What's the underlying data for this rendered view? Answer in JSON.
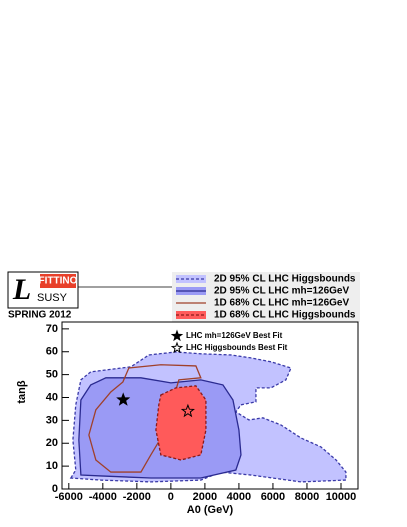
{
  "chart_data": {
    "type": "contour",
    "logo": {
      "letter": "L",
      "top": "FITTINO",
      "bottom": "SUSY",
      "caption": "SPRING 2012"
    },
    "xlabel": "A0 (GeV)",
    "ylabel": "tanβ",
    "xlim": [
      -6400,
      11000
    ],
    "ylim": [
      0,
      73
    ],
    "xticks": [
      -6000,
      -4000,
      -2000,
      0,
      2000,
      4000,
      6000,
      8000,
      10000
    ],
    "yticks": [
      0,
      10,
      20,
      30,
      40,
      50,
      60,
      70
    ],
    "series": [
      {
        "name": "2D 95% CL LHC Higgsbounds",
        "fill": "#c2c2ff",
        "color": "#3a3aa8",
        "line": "dashed",
        "x": [
          -5880,
          -5590,
          -5760,
          -5590,
          -5290,
          -4710,
          -2350,
          -1290,
          290,
          1760,
          3530,
          4710,
          5880,
          7060,
          6760,
          5880,
          5000,
          5000,
          4120,
          3820,
          4590,
          5410,
          6470,
          7650,
          8820,
          9710,
          10290,
          10290,
          7650,
          4710,
          2940,
          1760,
          -1180,
          -4120
        ],
        "y": [
          4.8,
          8.3,
          21.4,
          36.8,
          47.7,
          51.2,
          53.4,
          58.6,
          59.9,
          59.1,
          58.6,
          57.3,
          55.6,
          52.9,
          47.7,
          44.2,
          44.2,
          38.1,
          36.8,
          33.7,
          30.2,
          31.1,
          28,
          22.3,
          18.4,
          12.7,
          7.4,
          3.9,
          3.1,
          6.1,
          7.4,
          3.9,
          3.1,
          3.9
        ]
      },
      {
        "name": "2D 95% CL LHC mh=126GeV",
        "fill": "#9a9af5",
        "color": "#2a2a90",
        "line": "solid",
        "x": [
          -5290,
          -5410,
          -5290,
          -4710,
          -3820,
          -1760,
          0,
          1760,
          3060,
          3650,
          4000,
          4120,
          3820,
          1760,
          -1180,
          -4120
        ],
        "y": [
          6.1,
          21.4,
          38.9,
          45.5,
          48.6,
          48.6,
          46.4,
          47.7,
          45.5,
          38.9,
          25.8,
          14.9,
          8.3,
          4.8,
          4.8,
          5.7
        ]
      },
      {
        "name": "1D 68% CL LHC mh=126GeV",
        "fill": "none",
        "color": "#a0402a",
        "line": "solid",
        "x": [
          -4820,
          -4410,
          -3530,
          -2820,
          -2470,
          -590,
          1470,
          1760,
          470,
          120,
          -120,
          -1180,
          -1760,
          -3530,
          -4410
        ],
        "y": [
          23.6,
          34.6,
          42.4,
          46.8,
          52.9,
          54.3,
          53.8,
          48.6,
          47.7,
          38.9,
          28,
          14.9,
          7.4,
          7.4,
          12.7
        ]
      },
      {
        "name": "1D 68% CL LHC Higgsbounds",
        "fill": "#ff5a5a",
        "color": "#8a1a1a",
        "line": "dashed",
        "x": [
          -590,
          290,
          1470,
          2060,
          2060,
          1760,
          590,
          -590,
          -880,
          -710
        ],
        "y": [
          41.1,
          44.2,
          45.1,
          38.9,
          25.8,
          14.9,
          12.7,
          14.9,
          25.8,
          36.8
        ]
      }
    ],
    "points": [
      {
        "name": "LHC mh=126GeV Best Fit",
        "marker": "filled",
        "x": -2800,
        "y": 39
      },
      {
        "name": "LHC Higgsbounds Best Fit",
        "marker": "open",
        "x": 1000,
        "y": 34
      }
    ]
  }
}
